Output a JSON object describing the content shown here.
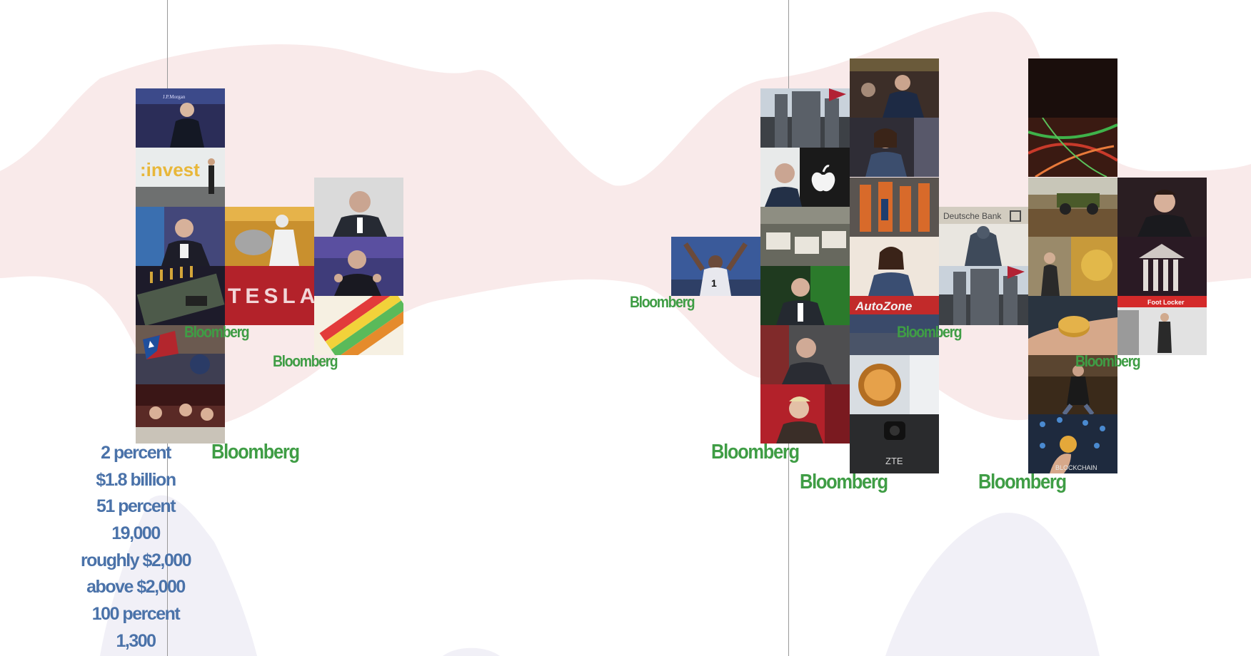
{
  "source_labels": {
    "left_a": "Bloomberg",
    "left_b": "Bloomberg",
    "left_c": "Bloomberg",
    "right_a": "Bloomberg",
    "right_b": "Bloomberg",
    "right_c": "Bloomberg",
    "right_d": "Bloomberg",
    "right_e": "Bloomberg",
    "right_f": "Bloomberg"
  },
  "figures": [
    "2 percent",
    "$1.8 billion",
    "51 percent",
    "19,000",
    "roughly $2,000",
    "above $2,000",
    "100 percent",
    "1,300"
  ],
  "photo_text": {
    "invest": ":invest",
    "tesla": "TESLA",
    "deutsche_bank": "Deutsche Bank",
    "autozone": "AutoZone",
    "zte": "ZTE",
    "foot_locker": "Foot Locker",
    "blockchain": "BLOCKCHAIN",
    "jpmorgan": "J.P.Morgan"
  },
  "colors": {
    "source_label": "#3f9d45",
    "figure_text": "#4a72a9",
    "pink_blob": "#f9eaea",
    "lavender_blob": "#f1f0f7"
  }
}
